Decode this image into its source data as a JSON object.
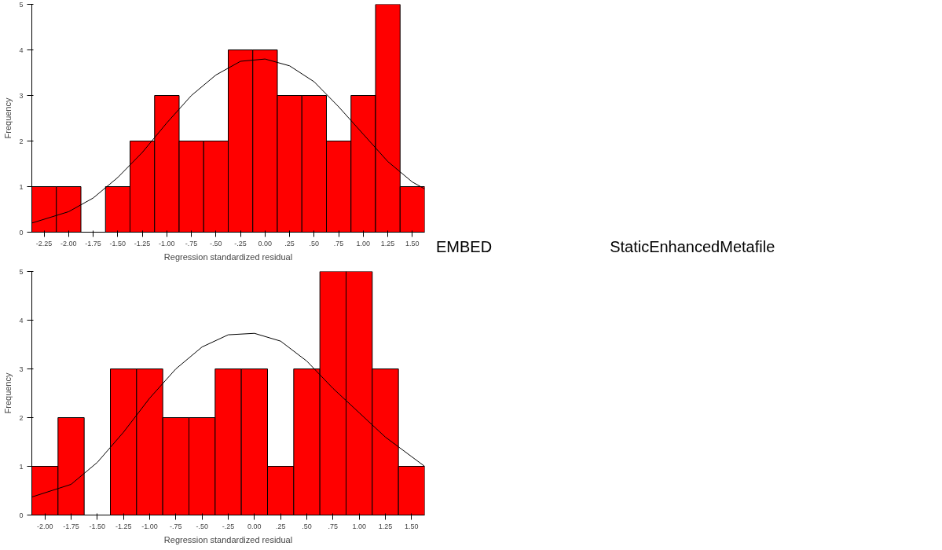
{
  "chart_data": [
    {
      "type": "histogram",
      "xlabel": "Regression standardized residual",
      "ylabel": "Frequency",
      "bins": [
        -2.375,
        -2.125,
        -1.875,
        -1.625,
        -1.375,
        -1.125,
        -0.875,
        -0.625,
        -0.375,
        -0.125,
        0.125,
        0.375,
        0.625,
        0.875,
        1.125,
        1.375,
        1.625
      ],
      "values": [
        1,
        1,
        0,
        1,
        2,
        3,
        2,
        2,
        4,
        4,
        3,
        3,
        2,
        3,
        5,
        1
      ],
      "color": "#ff0000",
      "series": [
        {
          "type": "line",
          "color": "#000000",
          "x": [
            -2.375,
            -2.0,
            -1.75,
            -1.5,
            -1.25,
            -1.0,
            -0.75,
            -0.5,
            -0.25,
            0.0,
            0.25,
            0.5,
            0.75,
            1.0,
            1.25,
            1.5,
            1.625
          ],
          "values": [
            0.2,
            0.45,
            0.75,
            1.2,
            1.75,
            2.4,
            3.0,
            3.45,
            3.75,
            3.8,
            3.65,
            3.3,
            2.75,
            2.15,
            1.55,
            1.1,
            0.95
          ]
        }
      ],
      "xlim": [
        -2.375,
        1.625
      ],
      "ylim": [
        0,
        5
      ],
      "yticks": [
        0,
        1,
        2,
        3,
        4,
        5
      ],
      "xticks": [
        {
          "value": -2.25,
          "label": "-2.25"
        },
        {
          "value": -2.0,
          "label": "-2.00"
        },
        {
          "value": -1.75,
          "label": "-1.75"
        },
        {
          "value": -1.5,
          "label": "-1.50"
        },
        {
          "value": -1.25,
          "label": "-1.25"
        },
        {
          "value": -1.0,
          "label": "-1.00"
        },
        {
          "value": -0.75,
          "label": "-.75"
        },
        {
          "value": -0.5,
          "label": "-.50"
        },
        {
          "value": -0.25,
          "label": "-.25"
        },
        {
          "value": 0.0,
          "label": "0.00"
        },
        {
          "value": 0.25,
          "label": ".25"
        },
        {
          "value": 0.5,
          "label": ".50"
        },
        {
          "value": 0.75,
          "label": ".75"
        },
        {
          "value": 1.0,
          "label": "1.00"
        },
        {
          "value": 1.25,
          "label": "1.25"
        },
        {
          "value": 1.5,
          "label": "1.50"
        }
      ],
      "grid": false,
      "annotations": [
        "EMBED",
        "StaticEnhancedMetafile"
      ]
    },
    {
      "type": "histogram",
      "xlabel": "Regression standardized residual",
      "ylabel": "Frequency",
      "bins": [
        -2.125,
        -1.875,
        -1.625,
        -1.375,
        -1.125,
        -0.875,
        -0.625,
        -0.375,
        -0.125,
        0.125,
        0.375,
        0.625,
        0.875,
        1.125,
        1.375,
        1.625
      ],
      "values": [
        1,
        2,
        0,
        3,
        3,
        2,
        2,
        3,
        3,
        1,
        3,
        5,
        5,
        3,
        1
      ],
      "color": "#ff0000",
      "series": [
        {
          "type": "line",
          "color": "#000000",
          "x": [
            -2.125,
            -1.75,
            -1.5,
            -1.25,
            -1.0,
            -0.75,
            -0.5,
            -0.25,
            0.0,
            0.25,
            0.5,
            0.75,
            1.0,
            1.25,
            1.5,
            1.625
          ],
          "values": [
            0.37,
            0.63,
            1.08,
            1.7,
            2.4,
            3.0,
            3.45,
            3.7,
            3.73,
            3.57,
            3.16,
            2.6,
            2.1,
            1.6,
            1.2,
            1.0
          ]
        }
      ],
      "xlim": [
        -2.125,
        1.625
      ],
      "ylim": [
        0,
        5
      ],
      "yticks": [
        0,
        1,
        2,
        3,
        4,
        5
      ],
      "xticks": [
        {
          "value": -2.0,
          "label": "-2.00"
        },
        {
          "value": -1.75,
          "label": "-1.75"
        },
        {
          "value": -1.5,
          "label": "-1.50"
        },
        {
          "value": -1.25,
          "label": "-1.25"
        },
        {
          "value": -1.0,
          "label": "-1.00"
        },
        {
          "value": -0.75,
          "label": "-.75"
        },
        {
          "value": -0.5,
          "label": "-.50"
        },
        {
          "value": -0.25,
          "label": "-.25"
        },
        {
          "value": 0.0,
          "label": "0.00"
        },
        {
          "value": 0.25,
          "label": ".25"
        },
        {
          "value": 0.5,
          "label": ".50"
        },
        {
          "value": 0.75,
          "label": ".75"
        },
        {
          "value": 1.0,
          "label": "1.00"
        },
        {
          "value": 1.25,
          "label": "1.25"
        },
        {
          "value": 1.5,
          "label": "1.50"
        }
      ],
      "grid": false
    }
  ]
}
